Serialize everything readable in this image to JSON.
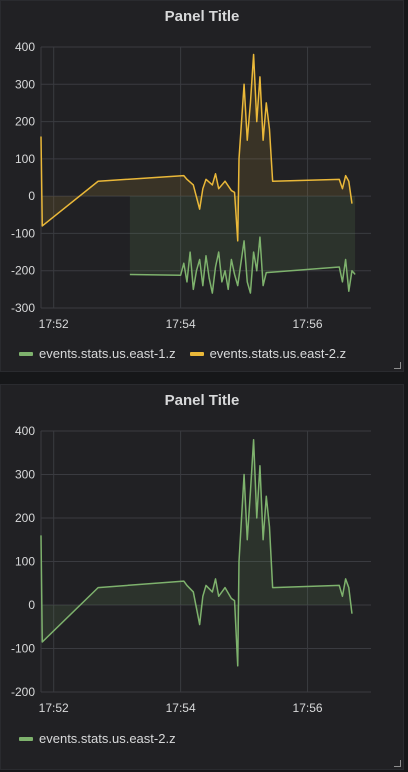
{
  "colors": {
    "green": "#7eb26d",
    "yellow": "#eab839",
    "grid": "#3a3b40",
    "text": "#d8d9da"
  },
  "panels": [
    {
      "title": "Panel Title",
      "legend": [
        {
          "name": "events.stats.us.east-1.z",
          "color": "#7eb26d"
        },
        {
          "name": "events.stats.us.east-2.z",
          "color": "#eab839"
        }
      ]
    },
    {
      "title": "Panel Title",
      "legend": [
        {
          "name": "events.stats.us.east-2.z",
          "color": "#7eb26d"
        }
      ]
    }
  ],
  "chart_data": [
    {
      "type": "line",
      "title": "Panel Title",
      "x_ticks": [
        "17:52",
        "17:54",
        "17:56"
      ],
      "y_ticks": [
        400,
        300,
        200,
        100,
        0,
        -100,
        -200,
        -300
      ],
      "xlim": [
        "17:51.8",
        "17:57.0"
      ],
      "ylim": [
        -300,
        400
      ],
      "grid": true,
      "legend_position": "bottom",
      "series": [
        {
          "name": "events.stats.us.east-1.z",
          "color": "#7eb26d",
          "fill": true,
          "points": [
            [
              "17:53.2",
              -210
            ],
            [
              "17:54.0",
              -212
            ],
            [
              "17:54.05",
              -180
            ],
            [
              "17:54.1",
              -230
            ],
            [
              "17:54.15",
              -150
            ],
            [
              "17:54.2",
              -250
            ],
            [
              "17:54.25",
              -200
            ],
            [
              "17:54.3",
              -170
            ],
            [
              "17:54.35",
              -240
            ],
            [
              "17:54.4",
              -160
            ],
            [
              "17:54.45",
              -220
            ],
            [
              "17:54.5",
              -260
            ],
            [
              "17:54.55",
              -190
            ],
            [
              "17:54.6",
              -150
            ],
            [
              "17:54.65",
              -230
            ],
            [
              "17:54.7",
              -200
            ],
            [
              "17:54.75",
              -250
            ],
            [
              "17:54.8",
              -170
            ],
            [
              "17:54.85",
              -210
            ],
            [
              "17:54.9",
              -240
            ],
            [
              "17:54.95",
              -180
            ],
            [
              "17:55.0",
              -120
            ],
            [
              "17:55.05",
              -230
            ],
            [
              "17:55.1",
              -260
            ],
            [
              "17:55.15",
              -150
            ],
            [
              "17:55.2",
              -200
            ],
            [
              "17:55.25",
              -110
            ],
            [
              "17:55.3",
              -240
            ],
            [
              "17:55.35",
              -205
            ],
            [
              "17:56.5",
              -190
            ],
            [
              "17:56.55",
              -230
            ],
            [
              "17:56.6",
              -170
            ],
            [
              "17:56.65",
              -255
            ],
            [
              "17:56.7",
              -200
            ],
            [
              "17:56.75",
              -210
            ]
          ]
        },
        {
          "name": "events.stats.us.east-2.z",
          "color": "#eab839",
          "fill": true,
          "points": [
            [
              "17:51.8",
              160
            ],
            [
              "17:51.82",
              -80
            ],
            [
              "17:52.7",
              40
            ],
            [
              "17:54.05",
              55
            ],
            [
              "17:54.1",
              45
            ],
            [
              "17:54.2",
              30
            ],
            [
              "17:54.3",
              -35
            ],
            [
              "17:54.35",
              20
            ],
            [
              "17:54.4",
              45
            ],
            [
              "17:54.5",
              30
            ],
            [
              "17:54.55",
              60
            ],
            [
              "17:54.6",
              20
            ],
            [
              "17:54.7",
              40
            ],
            [
              "17:54.8",
              15
            ],
            [
              "17:54.85",
              10
            ],
            [
              "17:54.9",
              -120
            ],
            [
              "17:54.92",
              100
            ],
            [
              "17:55.0",
              300
            ],
            [
              "17:55.05",
              150
            ],
            [
              "17:55.1",
              250
            ],
            [
              "17:55.15",
              380
            ],
            [
              "17:55.2",
              200
            ],
            [
              "17:55.25",
              320
            ],
            [
              "17:55.3",
              150
            ],
            [
              "17:55.35",
              250
            ],
            [
              "17:55.4",
              180
            ],
            [
              "17:55.45",
              40
            ],
            [
              "17:56.5",
              45
            ],
            [
              "17:56.55",
              20
            ],
            [
              "17:56.6",
              55
            ],
            [
              "17:56.65",
              40
            ],
            [
              "17:56.7",
              -20
            ]
          ]
        }
      ]
    },
    {
      "type": "line",
      "title": "Panel Title",
      "x_ticks": [
        "17:52",
        "17:54",
        "17:56"
      ],
      "y_ticks": [
        400,
        300,
        200,
        100,
        0,
        -100,
        -200
      ],
      "xlim": [
        "17:51.8",
        "17:57.0"
      ],
      "ylim": [
        -200,
        400
      ],
      "grid": true,
      "legend_position": "bottom",
      "series": [
        {
          "name": "events.stats.us.east-2.z",
          "color": "#7eb26d",
          "fill": true,
          "points": [
            [
              "17:51.8",
              160
            ],
            [
              "17:51.82",
              -85
            ],
            [
              "17:52.7",
              40
            ],
            [
              "17:54.05",
              55
            ],
            [
              "17:54.1",
              45
            ],
            [
              "17:54.2",
              30
            ],
            [
              "17:54.3",
              -45
            ],
            [
              "17:54.35",
              20
            ],
            [
              "17:54.4",
              45
            ],
            [
              "17:54.5",
              30
            ],
            [
              "17:54.55",
              60
            ],
            [
              "17:54.6",
              20
            ],
            [
              "17:54.7",
              40
            ],
            [
              "17:54.8",
              15
            ],
            [
              "17:54.85",
              10
            ],
            [
              "17:54.9",
              -140
            ],
            [
              "17:54.92",
              100
            ],
            [
              "17:55.0",
              300
            ],
            [
              "17:55.05",
              150
            ],
            [
              "17:55.1",
              260
            ],
            [
              "17:55.15",
              380
            ],
            [
              "17:55.2",
              200
            ],
            [
              "17:55.25",
              320
            ],
            [
              "17:55.3",
              150
            ],
            [
              "17:55.35",
              250
            ],
            [
              "17:55.4",
              180
            ],
            [
              "17:55.45",
              40
            ],
            [
              "17:56.5",
              45
            ],
            [
              "17:56.55",
              20
            ],
            [
              "17:56.6",
              60
            ],
            [
              "17:56.65",
              40
            ],
            [
              "17:56.7",
              -20
            ]
          ]
        }
      ]
    }
  ]
}
